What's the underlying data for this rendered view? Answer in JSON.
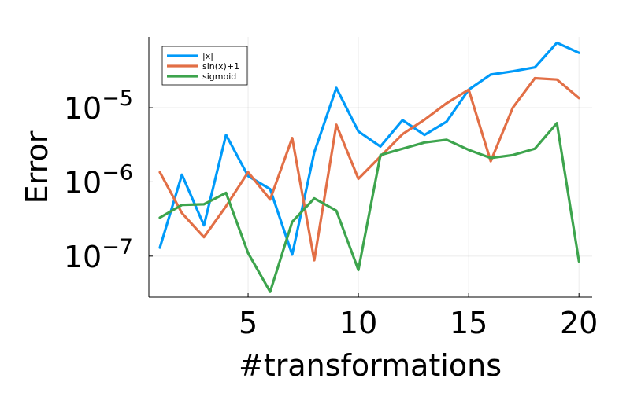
{
  "chart_data": {
    "type": "line",
    "title": "",
    "xlabel": "#transformations",
    "ylabel": "Error",
    "x": [
      1,
      2,
      3,
      4,
      5,
      6,
      7,
      8,
      9,
      10,
      11,
      12,
      13,
      14,
      15,
      16,
      17,
      18,
      19,
      20
    ],
    "xlim": [
      0.5,
      20.6
    ],
    "xticks": [
      5,
      10,
      15,
      20
    ],
    "y_scale": "log",
    "ylim": [
      2.8e-08,
      9e-05
    ],
    "yticks": [
      {
        "value": 1e-07,
        "base": "10",
        "exp": "−7"
      },
      {
        "value": 1e-06,
        "base": "10",
        "exp": "−6"
      },
      {
        "value": 1e-05,
        "base": "10",
        "exp": "−5"
      }
    ],
    "grid": true,
    "legend_position": "top-left",
    "series": [
      {
        "name": "|x|",
        "color": "#009af9",
        "values": [
          1.3e-07,
          1.25e-06,
          2.6e-07,
          4.3e-06,
          1.2e-06,
          8e-07,
          1.05e-07,
          2.5e-06,
          1.85e-05,
          4.8e-06,
          3e-06,
          6.8e-06,
          4.3e-06,
          6.5e-06,
          1.75e-05,
          2.8e-05,
          3.1e-05,
          3.5e-05,
          7.5e-05,
          5.5e-05
        ]
      },
      {
        "name": "sin(x)+1",
        "color": "#e26f46",
        "values": [
          1.35e-06,
          3.8e-07,
          1.8e-07,
          4.7e-07,
          1.35e-06,
          5.8e-07,
          3.9e-06,
          8.8e-08,
          5.9e-06,
          1.1e-06,
          2.2e-06,
          4.4e-06,
          6.9e-06,
          1.15e-05,
          1.75e-05,
          1.9e-06,
          1e-05,
          2.5e-05,
          2.4e-05,
          1.35e-05
        ]
      },
      {
        "name": "sigmoid",
        "color": "#3da44d",
        "values": [
          3.3e-07,
          4.9e-07,
          5e-07,
          7.1e-07,
          1.1e-07,
          3.3e-08,
          2.9e-07,
          6e-07,
          4.1e-07,
          6.5e-08,
          2.3e-06,
          2.8e-06,
          3.4e-06,
          3.7e-06,
          2.7e-06,
          2.1e-06,
          2.3e-06,
          2.8e-06,
          6.2e-06,
          8.5e-08
        ]
      }
    ]
  }
}
